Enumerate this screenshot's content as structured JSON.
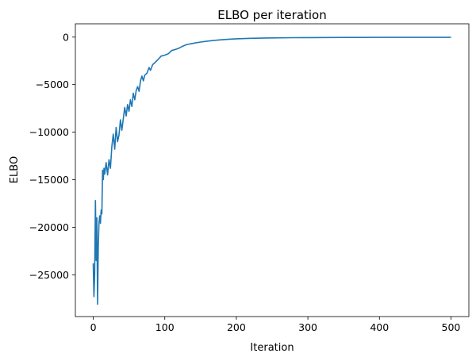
{
  "chart_data": {
    "type": "line",
    "title": "ELBO per iteration",
    "xlabel": "Iteration",
    "ylabel": "ELBO",
    "xlim": [
      -25,
      525
    ],
    "ylim": [
      -29400,
      1400
    ],
    "x_ticks": [
      0,
      100,
      200,
      300,
      400,
      500
    ],
    "y_ticks": [
      0,
      -5000,
      -10000,
      -15000,
      -20000,
      -25000
    ],
    "x_tick_labels": [
      "0",
      "100",
      "200",
      "300",
      "400",
      "500"
    ],
    "y_tick_labels": [
      "0",
      "−5000",
      "−10000",
      "−15000",
      "−20000",
      "−25000"
    ],
    "grid": false,
    "legend": "none",
    "colors": {
      "line": "#1f77b4",
      "axes": "#000000"
    },
    "series": [
      {
        "x": [
          0,
          1,
          2,
          3,
          4,
          5,
          6,
          7,
          8,
          9,
          10,
          11,
          12,
          13,
          14,
          15,
          16,
          18,
          20,
          22,
          24,
          26,
          28,
          30,
          32,
          34,
          36,
          38,
          40,
          42,
          44,
          46,
          48,
          50,
          52,
          54,
          56,
          58,
          60,
          62,
          64,
          66,
          68,
          70,
          72,
          75,
          78,
          80,
          83,
          86,
          90,
          95,
          100,
          105,
          110,
          115,
          120,
          125,
          130,
          135,
          140,
          150,
          160,
          170,
          180,
          190,
          200,
          220,
          240,
          260,
          280,
          300,
          325,
          350,
          375,
          400,
          450,
          500
        ],
        "y": [
          -23800,
          -27300,
          -25000,
          -17200,
          -23500,
          -19000,
          -28100,
          -22000,
          -19500,
          -18800,
          -19600,
          -18200,
          -18600,
          -14000,
          -15000,
          -13800,
          -14400,
          -13200,
          -14500,
          -12900,
          -13800,
          -11500,
          -10200,
          -11800,
          -9500,
          -11000,
          -10300,
          -8700,
          -9800,
          -8600,
          -7400,
          -8300,
          -7100,
          -7800,
          -6600,
          -7300,
          -5900,
          -6600,
          -5600,
          -5200,
          -5700,
          -4600,
          -4100,
          -4600,
          -4000,
          -3800,
          -3200,
          -3500,
          -2900,
          -2700,
          -2400,
          -2000,
          -1900,
          -1750,
          -1400,
          -1300,
          -1150,
          -950,
          -800,
          -720,
          -650,
          -520,
          -420,
          -340,
          -280,
          -220,
          -180,
          -130,
          -95,
          -75,
          -60,
          -50,
          -42,
          -36,
          -32,
          -30,
          -28,
          -27
        ]
      }
    ]
  }
}
